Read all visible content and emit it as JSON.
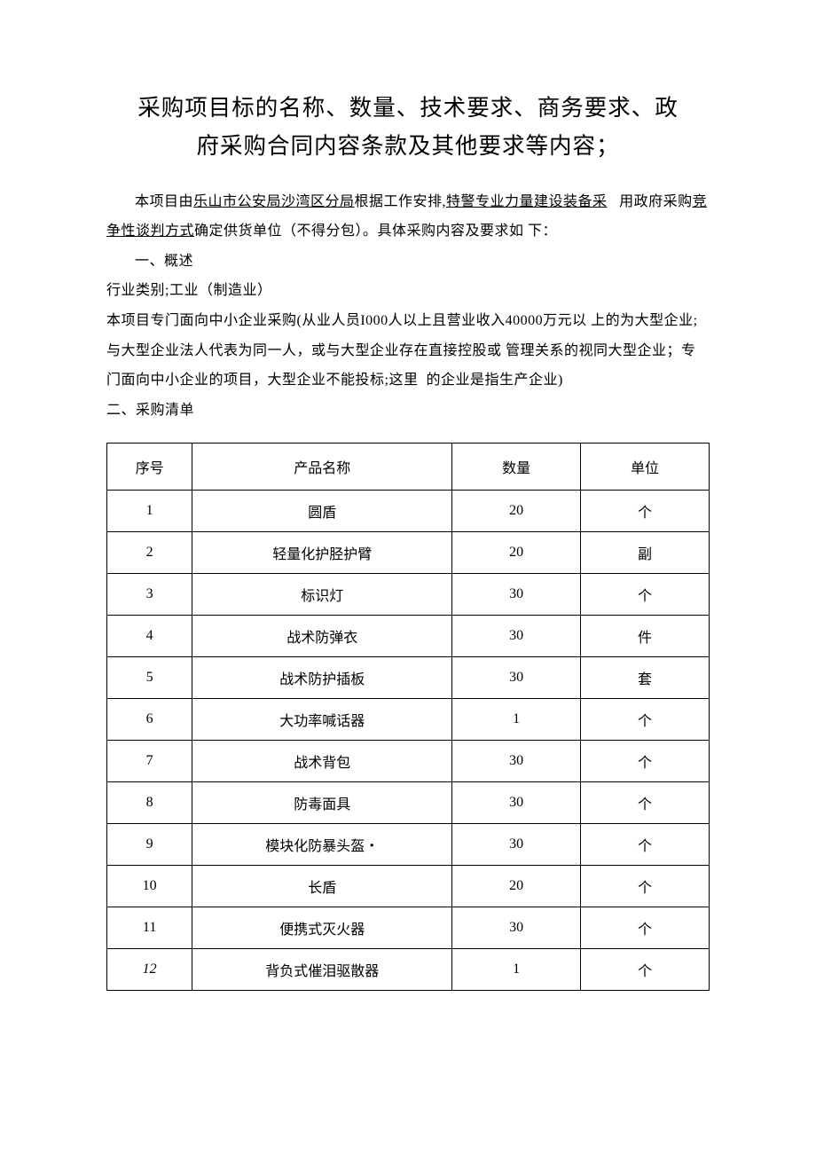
{
  "title_line1": "采购项目标的名称、数量、技术要求、商务要求、政",
  "title_line2": "府采购合同内容条款及其他要求等内容；",
  "para1_pre": "本项目由",
  "para1_u1": "乐山市公安局沙湾区分局",
  "para1_mid1": "根据工作安排,",
  "para1_u2": "特警专业力量建设装备采",
  "para1_mid2": "   用政府采购",
  "para1_u3": "竞争性谈判方式",
  "para1_post": "确定供货单位（不得分包）。具体采购内容及要求如 下：",
  "section1_heading": "一、概述",
  "para2": "行业类别;工业（制造业）",
  "para3": "本项目专门面向中小企业采购(从业人员I000人以上且营业收入40000万元以 上的为大型企业; 与大型企业法人代表为同一人，或与大型企业存在直接控股或 管理关系的视同大型企业；专门面向中小企业的项目，大型企业不能投标;这里  的企业是指生产企业)",
  "section2_heading": "二、采购清单",
  "table": {
    "headers": {
      "seq": "序号",
      "name": "产品名称",
      "qty": "数量",
      "unit": "单位"
    },
    "rows": [
      {
        "seq": "1",
        "name": "圆盾",
        "qty": "20",
        "unit": "个",
        "italic_seq": false
      },
      {
        "seq": "2",
        "name": "轻量化护胫护臂",
        "qty": "20",
        "unit": "副",
        "italic_seq": false
      },
      {
        "seq": "3",
        "name": "标识灯",
        "qty": "30",
        "unit": "个",
        "italic_seq": false
      },
      {
        "seq": "4",
        "name": "战术防弹衣",
        "qty": "30",
        "unit": "件",
        "italic_seq": false
      },
      {
        "seq": "5",
        "name": "战术防护插板",
        "qty": "30",
        "unit": "套",
        "italic_seq": false
      },
      {
        "seq": "6",
        "name": "大功率喊话器",
        "qty": "1",
        "unit": "个",
        "italic_seq": false
      },
      {
        "seq": "7",
        "name": "战术背包",
        "qty": "30",
        "unit": "个",
        "italic_seq": false
      },
      {
        "seq": "8",
        "name": "防毒面具",
        "qty": "30",
        "unit": "个",
        "italic_seq": false
      },
      {
        "seq": "9",
        "name": "模块化防暴头盔・",
        "qty": "30",
        "unit": "个",
        "italic_seq": false
      },
      {
        "seq": "10",
        "name": "长盾",
        "qty": "20",
        "unit": "个",
        "italic_seq": false
      },
      {
        "seq": "11",
        "name": "便携式灭火器",
        "qty": "30",
        "unit": "个",
        "italic_seq": false
      },
      {
        "seq": "12",
        "name": "背负式催泪驱散器",
        "qty": "1",
        "unit": "个",
        "italic_seq": true
      }
    ]
  }
}
